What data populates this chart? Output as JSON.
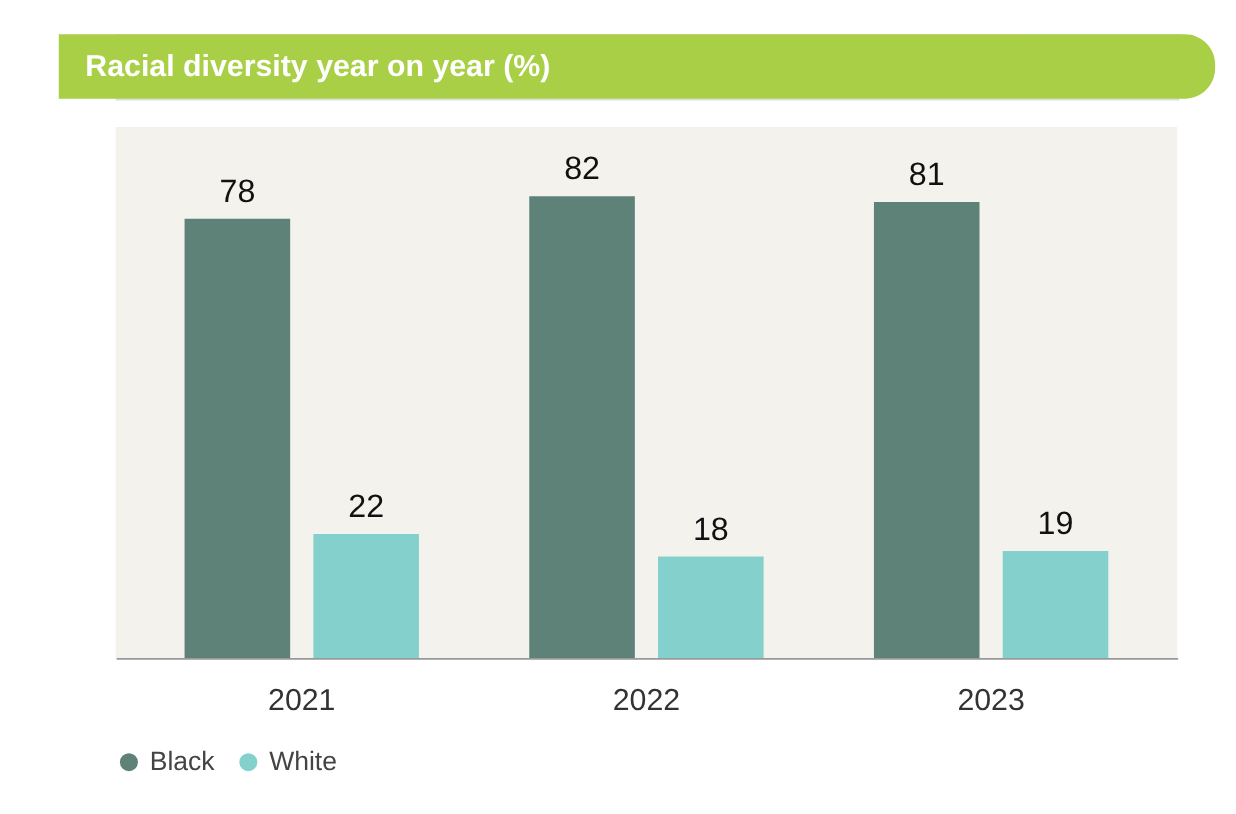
{
  "chart_data": {
    "type": "bar",
    "title": "Racial diversity year on year (%)",
    "categories": [
      "2021",
      "2022",
      "2023"
    ],
    "series": [
      {
        "name": "Black",
        "color": "#5e8278",
        "values": [
          78,
          82,
          81
        ]
      },
      {
        "name": "White",
        "color": "#84d0cc",
        "values": [
          22,
          18,
          19
        ]
      }
    ],
    "data_labels": true,
    "legend": "bottom left",
    "grid": false
  }
}
